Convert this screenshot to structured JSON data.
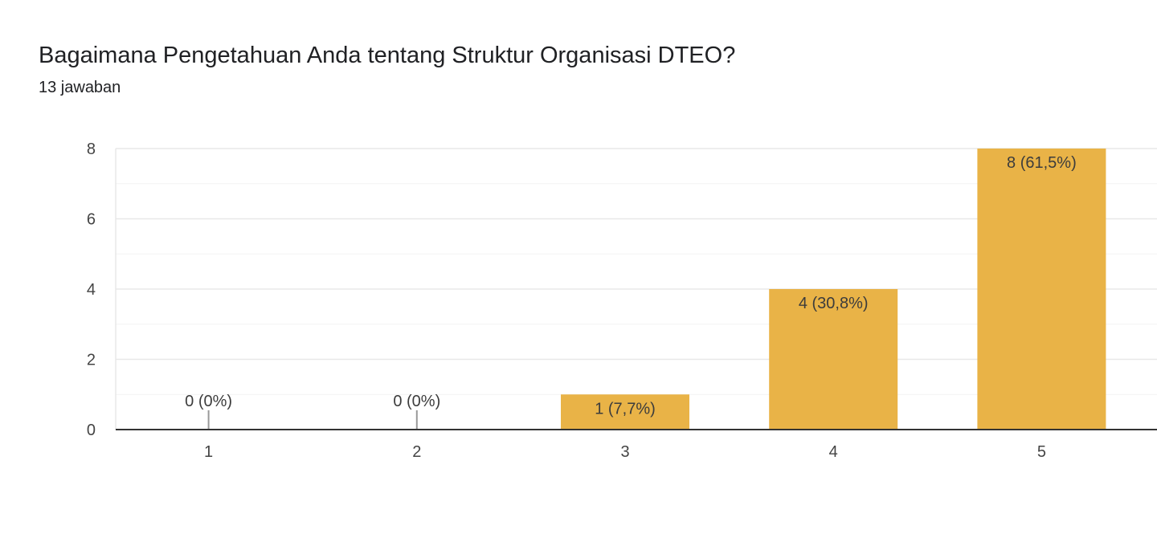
{
  "header": {
    "title": "Bagaimana Pengetahuan Anda tentang Struktur Organisasi DTEO?",
    "response_count": "13 jawaban"
  },
  "colors": {
    "bar": "#e9b347",
    "gridline": "#e8e8e8",
    "minor_gridline": "#f3f3f3",
    "baseline": "#333333",
    "zero_marker": "#999999"
  },
  "chart_data": {
    "type": "bar",
    "categories": [
      "1",
      "2",
      "3",
      "4",
      "5"
    ],
    "values": [
      0,
      0,
      1,
      4,
      8
    ],
    "data_labels": [
      "0 (0%)",
      "0 (0%)",
      "1 (7,7%)",
      "4 (30,8%)",
      "8 (61,5%)"
    ],
    "title": "Bagaimana Pengetahuan Anda tentang Struktur Organisasi DTEO?",
    "subtitle": "13 jawaban",
    "xlabel": "",
    "ylabel": "",
    "ylim": [
      0,
      8
    ],
    "yticks": [
      0,
      2,
      4,
      6,
      8
    ],
    "grid": true,
    "legend": "none"
  }
}
